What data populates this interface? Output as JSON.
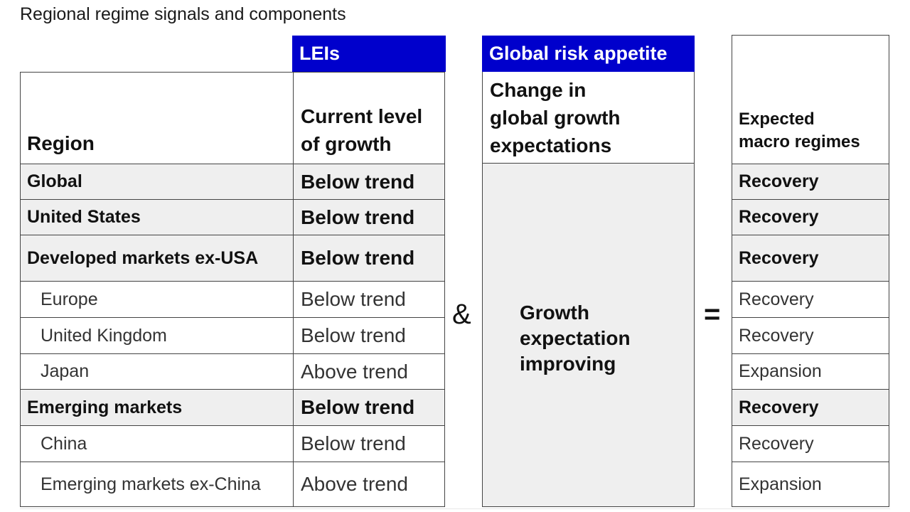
{
  "title": "Regional regime signals and components",
  "lei": {
    "banner": "LEIs",
    "header_line1": "Current level",
    "header_line2": "of growth"
  },
  "region_header": "Region",
  "risk": {
    "banner": "Global risk appetite",
    "header_line1": "Change in",
    "header_line2": "global growth",
    "header_line3": "expectations",
    "value_line1": "Growth",
    "value_line2": "expectation",
    "value_line3": "improving"
  },
  "regime_header_line1": "Expected",
  "regime_header_line2": "macro regimes",
  "operators": {
    "and": "&",
    "equals": "="
  },
  "rows": [
    {
      "region": "Global",
      "lei": "Below trend",
      "regime": "Recovery",
      "level": "aggregate"
    },
    {
      "region": "United States",
      "lei": "Below trend",
      "regime": "Recovery",
      "level": "aggregate"
    },
    {
      "region": "Developed markets ex-USA",
      "lei": "Below trend",
      "regime": "Recovery",
      "level": "aggregate"
    },
    {
      "region": "Europe",
      "lei": "Below trend",
      "regime": "Recovery",
      "level": "sub"
    },
    {
      "region": "United Kingdom",
      "lei": "Below trend",
      "regime": "Recovery",
      "level": "sub"
    },
    {
      "region": "Japan",
      "lei": "Above trend",
      "regime": "Expansion",
      "level": "sub"
    },
    {
      "region": "Emerging markets",
      "lei": "Below trend",
      "regime": "Recovery",
      "level": "aggregate"
    },
    {
      "region": "China",
      "lei": "Below trend",
      "regime": "Recovery",
      "level": "sub"
    },
    {
      "region": "Emerging markets ex-China",
      "lei": "Above trend",
      "regime": "Expansion",
      "level": "sub"
    }
  ],
  "colors": {
    "banner": "#0000cc",
    "shade": "#efefef",
    "border": "#444444"
  }
}
